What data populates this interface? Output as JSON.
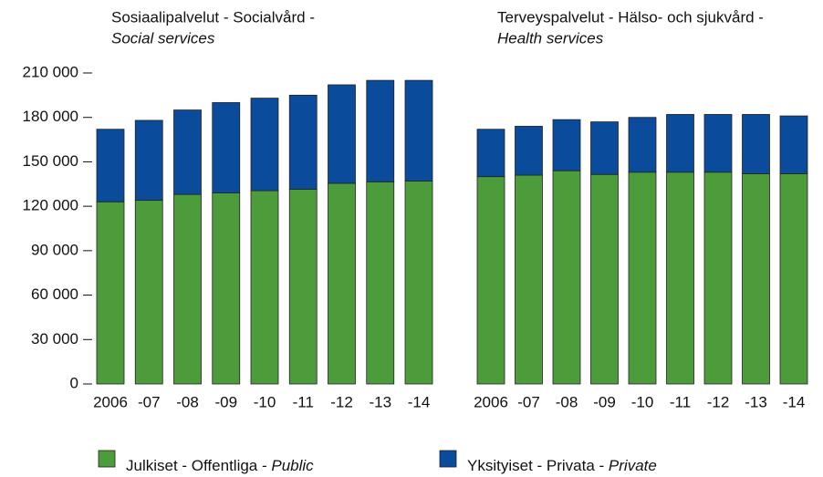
{
  "chart_data": [
    {
      "type": "stacked_bar",
      "title": "Sosiaalipalvelut - Socialvård -",
      "subtitle": "Social services",
      "categories": [
        "2006",
        "-07",
        "-08",
        "-09",
        "-10",
        "-11",
        "-12",
        "-13",
        "-14"
      ],
      "ylim": [
        0,
        210000
      ],
      "yticks": [
        0,
        {
          "value": 30000,
          "label": "30 000"
        },
        {
          "value": 60000,
          "label": "60 000"
        },
        {
          "value": 90000,
          "label": "90 000"
        },
        {
          "value": 120000,
          "label": "120 000"
        },
        {
          "value": 150000,
          "label": "150 000"
        },
        {
          "value": 180000,
          "label": "180 000"
        },
        {
          "value": 210000,
          "label": "210 000"
        }
      ],
      "series": [
        {
          "name": "Julkiset - Offentliga - Public",
          "color": "#4c9c3c",
          "values": [
            123000,
            124000,
            128000,
            129000,
            130500,
            131500,
            135500,
            136500,
            137000
          ]
        },
        {
          "name": "Yksityiset - Privata - Private",
          "color": "#0a4b9c",
          "values": [
            49000,
            54000,
            57000,
            61000,
            62500,
            63500,
            66500,
            68500,
            68000
          ]
        }
      ]
    },
    {
      "type": "stacked_bar",
      "title": "Terveyspalvelut - Hälso- och sjukvård -",
      "subtitle": "Health services",
      "categories": [
        "2006",
        "-07",
        "-08",
        "-09",
        "-10",
        "-11",
        "-12",
        "-13",
        "-14"
      ],
      "series": [
        {
          "color": "#4c9c3c",
          "values": [
            140000,
            141000,
            144000,
            141500,
            143000,
            143000,
            143000,
            142000,
            142000
          ]
        },
        {
          "color": "#0a4b9c",
          "values": [
            32000,
            33000,
            34500,
            35500,
            37000,
            39000,
            39000,
            40000,
            39000
          ]
        }
      ]
    }
  ]
}
